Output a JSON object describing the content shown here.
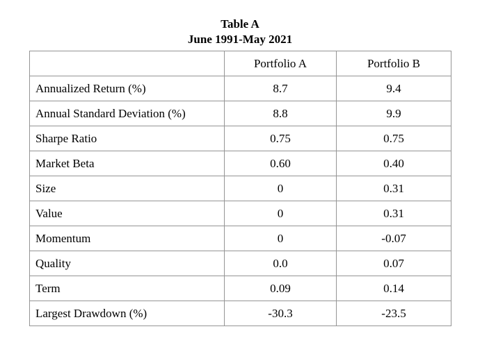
{
  "title": "Table A",
  "subtitle": "June 1991-May 2021",
  "table": {
    "columns": [
      "",
      "Portfolio A",
      "Portfolio B"
    ],
    "rows": [
      {
        "label": "Annualized Return (%)",
        "a": "8.7",
        "b": "9.4"
      },
      {
        "label": "Annual Standard Deviation (%)",
        "a": "8.8",
        "b": "9.9"
      },
      {
        "label": "Sharpe Ratio",
        "a": "0.75",
        "b": "0.75"
      },
      {
        "label": "Market Beta",
        "a": "0.60",
        "b": "0.40"
      },
      {
        "label": "Size",
        "a": "0",
        "b": "0.31"
      },
      {
        "label": "Value",
        "a": "0",
        "b": "0.31"
      },
      {
        "label": "Momentum",
        "a": "0",
        "b": "-0.07"
      },
      {
        "label": "Quality",
        "a": "0.0",
        "b": "0.07"
      },
      {
        "label": "Term",
        "a": "0.09",
        "b": "0.14"
      },
      {
        "label": "Largest Drawdown (%)",
        "a": "-30.3",
        "b": "-23.5"
      }
    ]
  }
}
